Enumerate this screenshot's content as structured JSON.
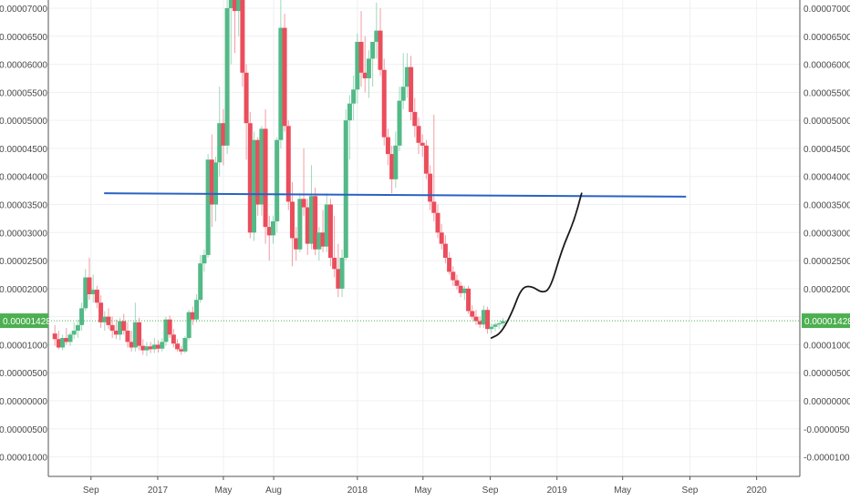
{
  "chart_data": {
    "type": "candlestick",
    "title": "",
    "xlabel": "",
    "ylabel": "",
    "ylim": [
      -1.2e-05,
      7.15e-05
    ],
    "y_ticks": [
      "0.00007000",
      "0.00006500",
      "0.00006000",
      "0.00005500",
      "0.00005000",
      "0.00004500",
      "0.00004000",
      "0.00003500",
      "0.00003000",
      "0.00002500",
      "0.00002000",
      "0.00001500",
      "0.00001000",
      "0.00000500",
      "0.00000000",
      "-0.00000500",
      "-0.00001000"
    ],
    "y_tick_values": [
      7e-05,
      6.5e-05,
      6e-05,
      5.5e-05,
      5e-05,
      4.5e-05,
      4e-05,
      3.5e-05,
      3e-05,
      2.5e-05,
      2e-05,
      1.5e-05,
      1e-05,
      5e-06,
      0,
      -5e-06,
      -1e-05
    ],
    "x_tick_labels": [
      "Sep",
      "2017",
      "May",
      "Aug",
      "2018",
      "May",
      "Sep",
      "2019",
      "May",
      "Sep",
      "2020"
    ],
    "x_tick_dates": [
      "2016-09-01",
      "2017-01-01",
      "2017-05-01",
      "2017-08-01",
      "2018-01-01",
      "2018-05-01",
      "2018-09-01",
      "2019-01-01",
      "2019-05-01",
      "2019-09-01",
      "2020-01-01"
    ],
    "x_range": [
      "2016-06-15",
      "2020-03-20"
    ],
    "grid": true,
    "current_price": {
      "label": "0.00001428",
      "value": 1.428e-05,
      "color": "#4caf50"
    },
    "up_color": "#53b987",
    "down_color": "#eb4d5c",
    "ohlc": [
      {
        "t": "2016-06-27",
        "o": 1.2e-05,
        "h": 1.35e-05,
        "l": 9.8e-06,
        "c": 1.1e-05
      },
      {
        "t": "2016-07-04",
        "o": 1.1e-05,
        "h": 1.25e-05,
        "l": 9.2e-06,
        "c": 9.5e-06
      },
      {
        "t": "2016-07-11",
        "o": 9.5e-06,
        "h": 1.18e-05,
        "l": 9e-06,
        "c": 1.12e-05
      },
      {
        "t": "2016-07-18",
        "o": 1.12e-05,
        "h": 1.3e-05,
        "l": 1e-05,
        "c": 1.05e-05
      },
      {
        "t": "2016-07-25",
        "o": 1.05e-05,
        "h": 1.22e-05,
        "l": 9.8e-06,
        "c": 1.18e-05
      },
      {
        "t": "2016-08-01",
        "o": 1.18e-05,
        "h": 1.4e-05,
        "l": 1.1e-05,
        "c": 1.25e-05
      },
      {
        "t": "2016-08-08",
        "o": 1.25e-05,
        "h": 1.45e-05,
        "l": 1.12e-05,
        "c": 1.35e-05
      },
      {
        "t": "2016-08-15",
        "o": 1.35e-05,
        "h": 1.75e-05,
        "l": 1.25e-05,
        "c": 1.65e-05
      },
      {
        "t": "2016-08-22",
        "o": 1.65e-05,
        "h": 2.35e-05,
        "l": 1.6e-05,
        "c": 2.2e-05
      },
      {
        "t": "2016-08-29",
        "o": 2.2e-05,
        "h": 2.55e-05,
        "l": 1.8e-05,
        "c": 1.9e-05
      },
      {
        "t": "2016-09-05",
        "o": 1.9e-05,
        "h": 2.25e-05,
        "l": 1.75e-05,
        "c": 1.98e-05
      },
      {
        "t": "2016-09-12",
        "o": 1.98e-05,
        "h": 2.05e-05,
        "l": 1.65e-05,
        "c": 1.75e-05
      },
      {
        "t": "2016-09-19",
        "o": 1.75e-05,
        "h": 1.88e-05,
        "l": 1.3e-05,
        "c": 1.4e-05
      },
      {
        "t": "2016-09-26",
        "o": 1.4e-05,
        "h": 1.6e-05,
        "l": 1.25e-05,
        "c": 1.5e-05
      },
      {
        "t": "2016-10-03",
        "o": 1.5e-05,
        "h": 1.65e-05,
        "l": 1.28e-05,
        "c": 1.35e-05
      },
      {
        "t": "2016-10-10",
        "o": 1.35e-05,
        "h": 1.5e-05,
        "l": 1.12e-05,
        "c": 1.25e-05
      },
      {
        "t": "2016-10-17",
        "o": 1.25e-05,
        "h": 1.45e-05,
        "l": 1.1e-05,
        "c": 1.18e-05
      },
      {
        "t": "2016-10-24",
        "o": 1.18e-05,
        "h": 1.48e-05,
        "l": 1.08e-05,
        "c": 1.42e-05
      },
      {
        "t": "2016-10-31",
        "o": 1.42e-05,
        "h": 1.55e-05,
        "l": 1.18e-05,
        "c": 1.25e-05
      },
      {
        "t": "2016-11-07",
        "o": 1.25e-05,
        "h": 1.4e-05,
        "l": 9.5e-06,
        "c": 1.05e-05
      },
      {
        "t": "2016-11-14",
        "o": 1.05e-05,
        "h": 1.25e-05,
        "l": 8.8e-06,
        "c": 9.5e-06
      },
      {
        "t": "2016-11-21",
        "o": 9.5e-06,
        "h": 1.75e-05,
        "l": 8.8e-06,
        "c": 1.4e-05
      },
      {
        "t": "2016-11-28",
        "o": 1.4e-05,
        "h": 1.48e-05,
        "l": 9e-06,
        "c": 9.8e-06
      },
      {
        "t": "2016-12-05",
        "o": 9.8e-06,
        "h": 1.1e-05,
        "l": 8.2e-06,
        "c": 9e-06
      },
      {
        "t": "2016-12-12",
        "o": 9e-06,
        "h": 1.05e-05,
        "l": 8e-06,
        "c": 9.7e-06
      },
      {
        "t": "2016-12-19",
        "o": 9.7e-06,
        "h": 1.05e-05,
        "l": 8.5e-06,
        "c": 9.2e-06
      },
      {
        "t": "2016-12-26",
        "o": 9.2e-06,
        "h": 1.12e-05,
        "l": 8.5e-06,
        "c": 1e-05
      },
      {
        "t": "2017-01-02",
        "o": 1e-05,
        "h": 1.08e-05,
        "l": 8.6e-06,
        "c": 9.3e-06
      },
      {
        "t": "2017-01-09",
        "o": 9.3e-06,
        "h": 1.12e-05,
        "l": 8.8e-06,
        "c": 1.05e-05
      },
      {
        "t": "2017-01-16",
        "o": 1.05e-05,
        "h": 1.5e-05,
        "l": 9.8e-06,
        "c": 1.45e-05
      },
      {
        "t": "2017-01-23",
        "o": 1.45e-05,
        "h": 1.52e-05,
        "l": 1.12e-05,
        "c": 1.18e-05
      },
      {
        "t": "2017-01-30",
        "o": 1.18e-05,
        "h": 1.28e-05,
        "l": 9.5e-06,
        "c": 1.02e-05
      },
      {
        "t": "2017-02-06",
        "o": 1.02e-05,
        "h": 1.1e-05,
        "l": 8.8e-06,
        "c": 9.2e-06
      },
      {
        "t": "2017-02-13",
        "o": 9.2e-06,
        "h": 9.8e-06,
        "l": 8.2e-06,
        "c": 8.8e-06
      },
      {
        "t": "2017-02-20",
        "o": 8.8e-06,
        "h": 1.15e-05,
        "l": 8.5e-06,
        "c": 1.12e-05
      },
      {
        "t": "2017-02-27",
        "o": 1.12e-05,
        "h": 1.62e-05,
        "l": 1.08e-05,
        "c": 1.58e-05
      },
      {
        "t": "2017-03-06",
        "o": 1.58e-05,
        "h": 1.68e-05,
        "l": 1.35e-05,
        "c": 1.45e-05
      },
      {
        "t": "2017-03-13",
        "o": 1.45e-05,
        "h": 1.9e-05,
        "l": 1.4e-05,
        "c": 1.8e-05
      },
      {
        "t": "2017-03-20",
        "o": 1.8e-05,
        "h": 2.6e-05,
        "l": 1.75e-05,
        "c": 2.45e-05
      },
      {
        "t": "2017-03-27",
        "o": 2.45e-05,
        "h": 2.7e-05,
        "l": 2.3e-05,
        "c": 2.6e-05
      },
      {
        "t": "2017-04-03",
        "o": 2.6e-05,
        "h": 4.4e-05,
        "l": 2.55e-05,
        "c": 4.3e-05
      },
      {
        "t": "2017-04-10",
        "o": 4.3e-05,
        "h": 4.75e-05,
        "l": 3.1e-05,
        "c": 3.5e-05
      },
      {
        "t": "2017-04-17",
        "o": 3.5e-05,
        "h": 4.35e-05,
        "l": 3.2e-05,
        "c": 4.25e-05
      },
      {
        "t": "2017-04-24",
        "o": 4.25e-05,
        "h": 5.6e-05,
        "l": 4e-05,
        "c": 4.95e-05
      },
      {
        "t": "2017-05-01",
        "o": 4.95e-05,
        "h": 5.2e-05,
        "l": 4.2e-05,
        "c": 4.55e-05
      },
      {
        "t": "2017-05-08",
        "o": 4.55e-05,
        "h": 7.15e-05,
        "l": 4.4e-05,
        "c": 7e-05
      },
      {
        "t": "2017-05-15",
        "o": 7e-05,
        "h": 7.15e-05,
        "l": 6e-05,
        "c": 7.15e-05
      },
      {
        "t": "2017-05-22",
        "o": 7.15e-05,
        "h": 7.15e-05,
        "l": 6.2e-05,
        "c": 6.95e-05
      },
      {
        "t": "2017-05-29",
        "o": 6.95e-05,
        "h": 7.15e-05,
        "l": 6.5e-05,
        "c": 7.15e-05
      },
      {
        "t": "2017-06-05",
        "o": 7.15e-05,
        "h": 7.15e-05,
        "l": 5.6e-05,
        "c": 5.85e-05
      },
      {
        "t": "2017-06-12",
        "o": 5.85e-05,
        "h": 6e-05,
        "l": 4.3e-05,
        "c": 4.95e-05
      },
      {
        "t": "2017-06-19",
        "o": 4.95e-05,
        "h": 5.15e-05,
        "l": 2.9e-05,
        "c": 3e-05
      },
      {
        "t": "2017-06-26",
        "o": 3e-05,
        "h": 4.8e-05,
        "l": 2.85e-05,
        "c": 4.65e-05
      },
      {
        "t": "2017-07-03",
        "o": 4.65e-05,
        "h": 4.7e-05,
        "l": 3.3e-05,
        "c": 3.5e-05
      },
      {
        "t": "2017-07-10",
        "o": 3.5e-05,
        "h": 4.9e-05,
        "l": 3.3e-05,
        "c": 4.85e-05
      },
      {
        "t": "2017-07-17",
        "o": 4.85e-05,
        "h": 5.2e-05,
        "l": 2.8e-05,
        "c": 3.1e-05
      },
      {
        "t": "2017-07-24",
        "o": 3.1e-05,
        "h": 3.3e-05,
        "l": 2.5e-05,
        "c": 2.95e-05
      },
      {
        "t": "2017-07-31",
        "o": 2.95e-05,
        "h": 3.3e-05,
        "l": 2.8e-05,
        "c": 3.2e-05
      },
      {
        "t": "2017-08-07",
        "o": 3.2e-05,
        "h": 4.7e-05,
        "l": 3e-05,
        "c": 4.65e-05
      },
      {
        "t": "2017-08-14",
        "o": 4.65e-05,
        "h": 7.15e-05,
        "l": 4.5e-05,
        "c": 6.65e-05
      },
      {
        "t": "2017-08-21",
        "o": 6.65e-05,
        "h": 6.9e-05,
        "l": 4.8e-05,
        "c": 4.9e-05
      },
      {
        "t": "2017-08-28",
        "o": 4.9e-05,
        "h": 5e-05,
        "l": 3.4e-05,
        "c": 3.55e-05
      },
      {
        "t": "2017-09-04",
        "o": 3.55e-05,
        "h": 3.9e-05,
        "l": 2.4e-05,
        "c": 2.9e-05
      },
      {
        "t": "2017-09-11",
        "o": 2.9e-05,
        "h": 3.1e-05,
        "l": 2.5e-05,
        "c": 2.7e-05
      },
      {
        "t": "2017-09-18",
        "o": 2.7e-05,
        "h": 3.7e-05,
        "l": 2.65e-05,
        "c": 3.6e-05
      },
      {
        "t": "2017-09-25",
        "o": 3.6e-05,
        "h": 4.5e-05,
        "l": 3.3e-05,
        "c": 3.45e-05
      },
      {
        "t": "2017-10-02",
        "o": 3.45e-05,
        "h": 3.6e-05,
        "l": 2.6e-05,
        "c": 2.8e-05
      },
      {
        "t": "2017-10-09",
        "o": 2.8e-05,
        "h": 4.2e-05,
        "l": 2.7e-05,
        "c": 3.65e-05
      },
      {
        "t": "2017-10-16",
        "o": 3.65e-05,
        "h": 3.8e-05,
        "l": 2.6e-05,
        "c": 2.7e-05
      },
      {
        "t": "2017-10-23",
        "o": 2.7e-05,
        "h": 3.1e-05,
        "l": 2.5e-05,
        "c": 3e-05
      },
      {
        "t": "2017-10-30",
        "o": 3e-05,
        "h": 3.4e-05,
        "l": 2.65e-05,
        "c": 2.75e-05
      },
      {
        "t": "2017-11-06",
        "o": 2.75e-05,
        "h": 3.7e-05,
        "l": 2.65e-05,
        "c": 3.5e-05
      },
      {
        "t": "2017-11-13",
        "o": 3.5e-05,
        "h": 3.6e-05,
        "l": 2.4e-05,
        "c": 2.55e-05
      },
      {
        "t": "2017-11-20",
        "o": 2.55e-05,
        "h": 3.3e-05,
        "l": 2.2e-05,
        "c": 2.35e-05
      },
      {
        "t": "2017-11-27",
        "o": 2.35e-05,
        "h": 2.8e-05,
        "l": 1.85e-05,
        "c": 2e-05
      },
      {
        "t": "2017-12-04",
        "o": 2e-05,
        "h": 2.7e-05,
        "l": 1.85e-05,
        "c": 2.55e-05
      },
      {
        "t": "2017-12-11",
        "o": 2.55e-05,
        "h": 5.2e-05,
        "l": 2.5e-05,
        "c": 5e-05
      },
      {
        "t": "2017-12-18",
        "o": 5e-05,
        "h": 5.45e-05,
        "l": 4.3e-05,
        "c": 5.3e-05
      },
      {
        "t": "2017-12-25",
        "o": 5.3e-05,
        "h": 5.8e-05,
        "l": 5e-05,
        "c": 5.55e-05
      },
      {
        "t": "2018-01-01",
        "o": 5.55e-05,
        "h": 6.55e-05,
        "l": 5.3e-05,
        "c": 6.4e-05
      },
      {
        "t": "2018-01-08",
        "o": 6.4e-05,
        "h": 6.95e-05,
        "l": 5.6e-05,
        "c": 5.85e-05
      },
      {
        "t": "2018-01-15",
        "o": 5.85e-05,
        "h": 6.5e-05,
        "l": 5.5e-05,
        "c": 5.75e-05
      },
      {
        "t": "2018-01-22",
        "o": 5.75e-05,
        "h": 6.25e-05,
        "l": 5.4e-05,
        "c": 6.1e-05
      },
      {
        "t": "2018-01-29",
        "o": 6.1e-05,
        "h": 6.4e-05,
        "l": 5.6e-05,
        "c": 6.4e-05
      },
      {
        "t": "2018-02-05",
        "o": 6.4e-05,
        "h": 7.1e-05,
        "l": 6.1e-05,
        "c": 6.6e-05
      },
      {
        "t": "2018-02-12",
        "o": 6.6e-05,
        "h": 7e-05,
        "l": 5.8e-05,
        "c": 5.9e-05
      },
      {
        "t": "2018-02-19",
        "o": 5.9e-05,
        "h": 6.1e-05,
        "l": 4.55e-05,
        "c": 4.7e-05
      },
      {
        "t": "2018-02-26",
        "o": 4.7e-05,
        "h": 4.85e-05,
        "l": 4.2e-05,
        "c": 4.4e-05
      },
      {
        "t": "2018-03-05",
        "o": 4.4e-05,
        "h": 4.55e-05,
        "l": 3.7e-05,
        "c": 3.95e-05
      },
      {
        "t": "2018-03-12",
        "o": 3.95e-05,
        "h": 4.8e-05,
        "l": 3.8e-05,
        "c": 4.55e-05
      },
      {
        "t": "2018-03-19",
        "o": 4.55e-05,
        "h": 5.6e-05,
        "l": 4.45e-05,
        "c": 5.35e-05
      },
      {
        "t": "2018-03-26",
        "o": 5.35e-05,
        "h": 6.2e-05,
        "l": 5.2e-05,
        "c": 5.6e-05
      },
      {
        "t": "2018-04-02",
        "o": 5.6e-05,
        "h": 6.2e-05,
        "l": 5.4e-05,
        "c": 5.95e-05
      },
      {
        "t": "2018-04-09",
        "o": 5.95e-05,
        "h": 6.15e-05,
        "l": 5e-05,
        "c": 5.15e-05
      },
      {
        "t": "2018-04-16",
        "o": 5.15e-05,
        "h": 5.4e-05,
        "l": 4.7e-05,
        "c": 4.9e-05
      },
      {
        "t": "2018-04-23",
        "o": 4.9e-05,
        "h": 5.05e-05,
        "l": 4.4e-05,
        "c": 4.6e-05
      },
      {
        "t": "2018-04-30",
        "o": 4.6e-05,
        "h": 4.75e-05,
        "l": 4.35e-05,
        "c": 4.55e-05
      },
      {
        "t": "2018-05-07",
        "o": 4.55e-05,
        "h": 4.65e-05,
        "l": 3.95e-05,
        "c": 4.05e-05
      },
      {
        "t": "2018-05-14",
        "o": 4.05e-05,
        "h": 4.2e-05,
        "l": 3.4e-05,
        "c": 3.55e-05
      },
      {
        "t": "2018-05-21",
        "o": 3.55e-05,
        "h": 5.1e-05,
        "l": 3.2e-05,
        "c": 3.35e-05
      },
      {
        "t": "2018-05-28",
        "o": 3.35e-05,
        "h": 3.5e-05,
        "l": 2.9e-05,
        "c": 3e-05
      },
      {
        "t": "2018-06-04",
        "o": 3e-05,
        "h": 3.15e-05,
        "l": 2.7e-05,
        "c": 2.8e-05
      },
      {
        "t": "2018-06-11",
        "o": 2.8e-05,
        "h": 2.95e-05,
        "l": 2.45e-05,
        "c": 2.55e-05
      },
      {
        "t": "2018-06-18",
        "o": 2.55e-05,
        "h": 2.65e-05,
        "l": 2.25e-05,
        "c": 2.3e-05
      },
      {
        "t": "2018-06-25",
        "o": 2.3e-05,
        "h": 2.4e-05,
        "l": 2.05e-05,
        "c": 2.15e-05
      },
      {
        "t": "2018-07-02",
        "o": 2.15e-05,
        "h": 2.25e-05,
        "l": 1.98e-05,
        "c": 2.05e-05
      },
      {
        "t": "2018-07-09",
        "o": 2.05e-05,
        "h": 2.12e-05,
        "l": 1.85e-05,
        "c": 1.92e-05
      },
      {
        "t": "2018-07-16",
        "o": 1.92e-05,
        "h": 2.05e-05,
        "l": 1.8e-05,
        "c": 2e-05
      },
      {
        "t": "2018-07-23",
        "o": 2e-05,
        "h": 2.05e-05,
        "l": 1.55e-05,
        "c": 1.6e-05
      },
      {
        "t": "2018-07-30",
        "o": 1.6e-05,
        "h": 1.7e-05,
        "l": 1.45e-05,
        "c": 1.5e-05
      },
      {
        "t": "2018-08-06",
        "o": 1.5e-05,
        "h": 1.62e-05,
        "l": 1.35e-05,
        "c": 1.42e-05
      },
      {
        "t": "2018-08-13",
        "o": 1.42e-05,
        "h": 1.5e-05,
        "l": 1.3e-05,
        "c": 1.36e-05
      },
      {
        "t": "2018-08-20",
        "o": 1.36e-05,
        "h": 1.7e-05,
        "l": 1.3e-05,
        "c": 1.62e-05
      },
      {
        "t": "2018-08-27",
        "o": 1.62e-05,
        "h": 1.68e-05,
        "l": 1.2e-05,
        "c": 1.28e-05
      },
      {
        "t": "2018-09-03",
        "o": 1.28e-05,
        "h": 1.38e-05,
        "l": 1.2e-05,
        "c": 1.32e-05
      },
      {
        "t": "2018-09-10",
        "o": 1.32e-05,
        "h": 1.4e-05,
        "l": 1.24e-05,
        "c": 1.36e-05
      },
      {
        "t": "2018-09-17",
        "o": 1.36e-05,
        "h": 1.42e-05,
        "l": 1.28e-05,
        "c": 1.38e-05
      },
      {
        "t": "2018-09-24",
        "o": 1.38e-05,
        "h": 1.48e-05,
        "l": 1.32e-05,
        "c": 1.42e-05
      }
    ],
    "drawings": {
      "horizontal_line": {
        "color": "#2962c4",
        "from": {
          "t": "2016-09-25",
          "v": 3.7e-05
        },
        "to": {
          "t": "2019-08-25",
          "v": 3.64e-05
        }
      },
      "projection_path": {
        "color": "#1a1a1a",
        "points": [
          {
            "t": "2018-09-03",
            "v": 1.12e-05
          },
          {
            "t": "2018-09-20",
            "v": 1.2e-05
          },
          {
            "t": "2018-10-10",
            "v": 1.55e-05
          },
          {
            "t": "2018-10-28",
            "v": 2.02e-05
          },
          {
            "t": "2018-11-15",
            "v": 2.05e-05
          },
          {
            "t": "2018-12-05",
            "v": 1.92e-05
          },
          {
            "t": "2018-12-20",
            "v": 2e-05
          },
          {
            "t": "2019-01-10",
            "v": 2.7e-05
          },
          {
            "t": "2019-02-01",
            "v": 3.2e-05
          },
          {
            "t": "2019-02-15",
            "v": 3.7e-05
          }
        ]
      }
    }
  }
}
